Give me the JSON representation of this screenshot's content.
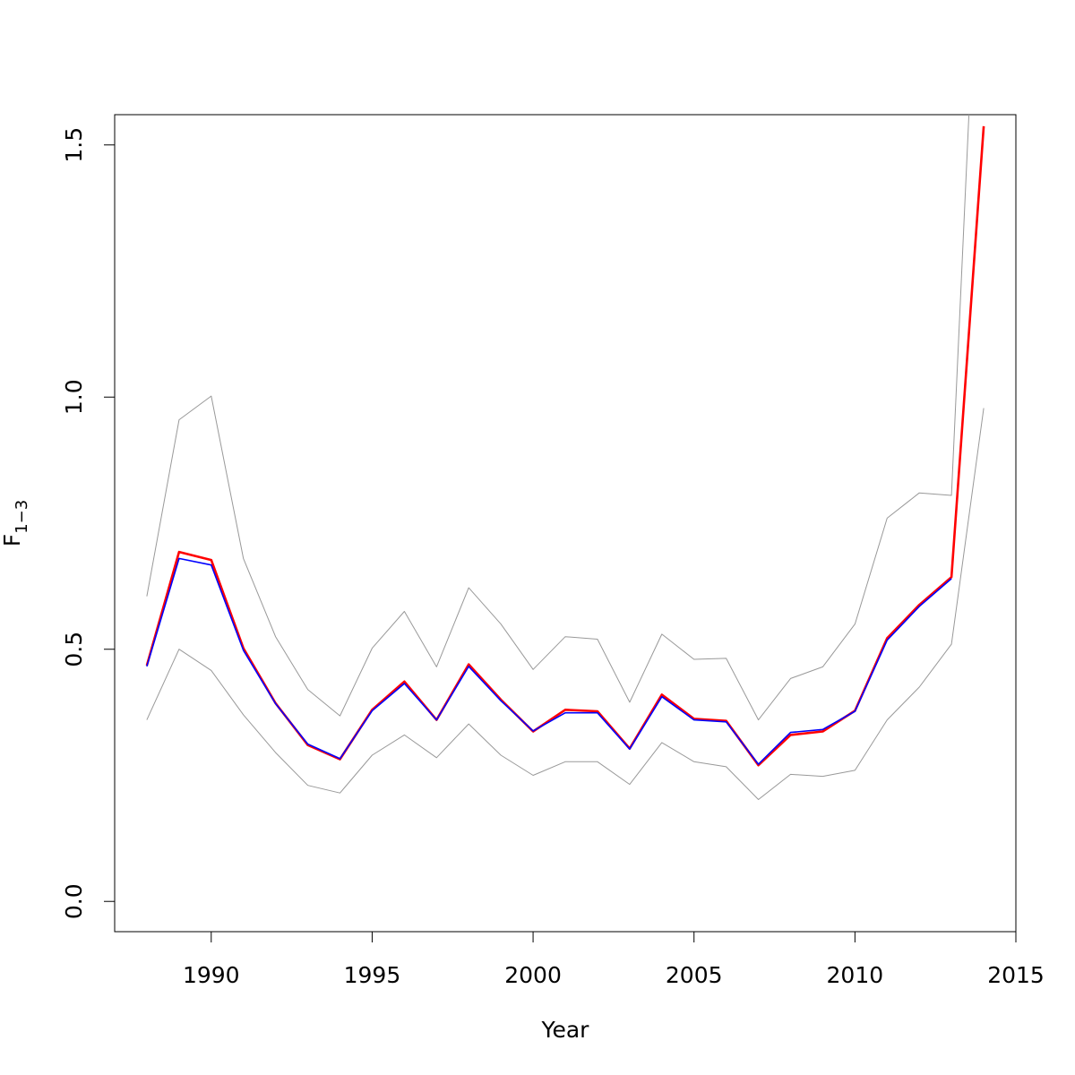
{
  "chart_data": {
    "type": "line",
    "xlabel": "Year",
    "ylabel": {
      "base": "F",
      "subscript": "1−3"
    },
    "xlim": [
      1987,
      2015
    ],
    "ylim": [
      -0.06,
      1.56
    ],
    "xticks": [
      1990,
      1995,
      2000,
      2005,
      2010,
      2015
    ],
    "yticks": [
      0.0,
      0.5,
      1.0,
      1.5
    ],
    "xtick_labels": [
      "1990",
      "1995",
      "2000",
      "2005",
      "2010",
      "2015"
    ],
    "ytick_labels": [
      "0.0",
      "0.5",
      "1.0",
      "1.5"
    ],
    "grid": false,
    "series": [
      {
        "color": "#999999",
        "style": "thin",
        "x": [
          1988,
          1989,
          1990,
          1991,
          1992,
          1993,
          1994,
          1995,
          1996,
          1997,
          1998,
          1999,
          2000,
          2001,
          2002,
          2003,
          2004,
          2005,
          2006,
          2007,
          2008,
          2009,
          2010,
          2011,
          2012,
          2013,
          2014
        ],
        "y": [
          0.605,
          0.955,
          1.002,
          0.68,
          0.525,
          0.42,
          0.368,
          0.502,
          0.575,
          0.465,
          0.622,
          0.55,
          0.46,
          0.525,
          0.52,
          0.395,
          0.53,
          0.48,
          0.482,
          0.36,
          0.442,
          0.465,
          0.55,
          0.76,
          0.81,
          0.805,
          2.2
        ]
      },
      {
        "color": "#999999",
        "style": "thin",
        "x": [
          1988,
          1989,
          1990,
          1991,
          1992,
          1993,
          1994,
          1995,
          1996,
          1997,
          1998,
          1999,
          2000,
          2001,
          2002,
          2003,
          2004,
          2005,
          2006,
          2007,
          2008,
          2009,
          2010,
          2011,
          2012,
          2013,
          2014
        ],
        "y": [
          0.36,
          0.5,
          0.458,
          0.37,
          0.295,
          0.23,
          0.215,
          0.29,
          0.33,
          0.285,
          0.352,
          0.29,
          0.25,
          0.277,
          0.277,
          0.232,
          0.315,
          0.277,
          0.267,
          0.202,
          0.252,
          0.248,
          0.26,
          0.36,
          0.425,
          0.51,
          0.978
        ]
      },
      {
        "color": "#ff0000",
        "style": "thick",
        "x": [
          1988,
          1989,
          1990,
          1991,
          1992,
          1993,
          1994,
          1995,
          1996,
          1997,
          1998,
          1999,
          2000,
          2001,
          2002,
          2003,
          2004,
          2005,
          2006,
          2007,
          2008,
          2009,
          2010,
          2011,
          2012,
          2013,
          2014
        ],
        "y": [
          0.468,
          0.693,
          0.677,
          0.502,
          0.393,
          0.31,
          0.282,
          0.38,
          0.436,
          0.36,
          0.47,
          0.4,
          0.337,
          0.38,
          0.377,
          0.303,
          0.41,
          0.362,
          0.358,
          0.27,
          0.33,
          0.337,
          0.378,
          0.522,
          0.588,
          0.643,
          1.537
        ]
      },
      {
        "color": "#0000ff",
        "style": "thin",
        "x": [
          1988,
          1989,
          1990,
          1991,
          1992,
          1993,
          1994,
          1995,
          1996,
          1997,
          1998,
          1999,
          2000,
          2001,
          2002,
          2003,
          2004,
          2005,
          2006,
          2007,
          2008,
          2009,
          2010,
          2011,
          2012,
          2013
        ],
        "y": [
          0.466,
          0.68,
          0.667,
          0.498,
          0.392,
          0.312,
          0.283,
          0.378,
          0.432,
          0.36,
          0.466,
          0.398,
          0.338,
          0.374,
          0.374,
          0.302,
          0.406,
          0.36,
          0.356,
          0.272,
          0.335,
          0.341,
          0.377,
          0.518,
          0.585,
          0.64
        ]
      }
    ]
  }
}
